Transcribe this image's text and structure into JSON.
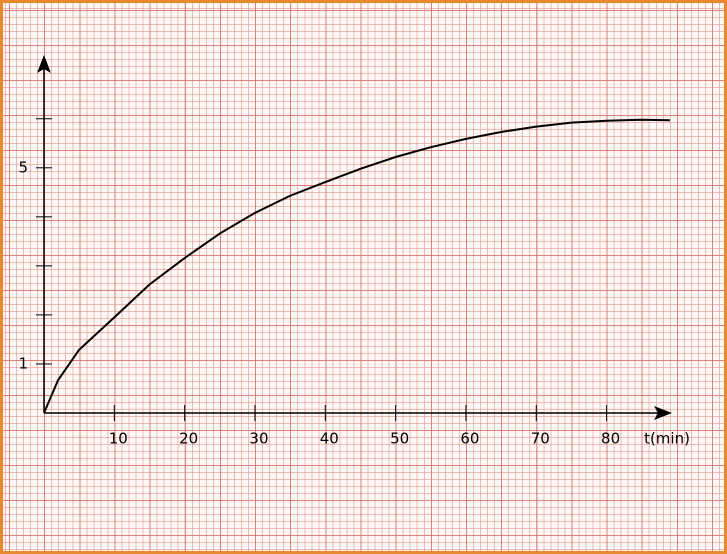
{
  "chart_data": {
    "type": "line",
    "x_label": "t(min)",
    "x": [
      0,
      2,
      5,
      10,
      15,
      20,
      25,
      30,
      35,
      40,
      45,
      50,
      55,
      60,
      65,
      70,
      75,
      80,
      85,
      89
    ],
    "series": [
      {
        "color": "#000000",
        "values": [
          0,
          0.67,
          1.29,
          1.95,
          2.62,
          3.16,
          3.66,
          4.08,
          4.43,
          4.71,
          4.98,
          5.22,
          5.42,
          5.59,
          5.73,
          5.84,
          5.92,
          5.96,
          5.98,
          5.97
        ]
      }
    ],
    "xlim": [
      0,
      89.3
    ],
    "ylim": [
      0,
      7.3
    ],
    "xticks": [
      10,
      20,
      30,
      40,
      50,
      60,
      70,
      80
    ],
    "yticks": [
      1,
      5
    ],
    "y_minor_ticks": [
      2,
      3,
      4,
      6
    ]
  }
}
